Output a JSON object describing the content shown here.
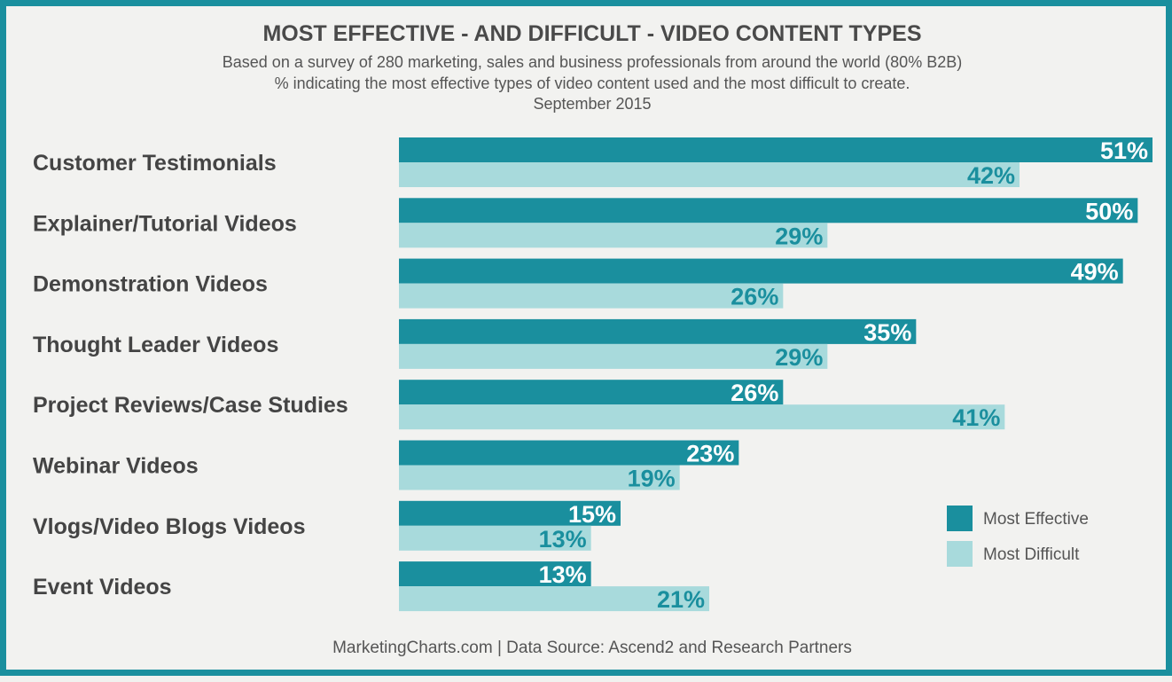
{
  "header": {
    "title": "MOST EFFECTIVE - AND DIFFICULT - VIDEO CONTENT TYPES",
    "subtitle_1": "Based on a survey of 280 marketing, sales and business professionals from around the world (80% B2B)",
    "subtitle_2": "% indicating the most effective types of video content used and the most difficult to create.",
    "subtitle_3": "September 2015"
  },
  "footer": {
    "source": "MarketingCharts.com | Data Source: Ascend2 and Research Partners"
  },
  "colors": {
    "frame": "#1a8f9e",
    "effective": "#1a8f9e",
    "difficult": "#a8dadc",
    "label_on_dark": "#ffffff",
    "label_on_light": "#1a8f9e"
  },
  "chart_data": {
    "type": "bar",
    "orientation": "horizontal",
    "title": "MOST EFFECTIVE - AND DIFFICULT - VIDEO CONTENT TYPES",
    "categories": [
      "Customer Testimonials",
      "Explainer/Tutorial Videos",
      "Demonstration Videos",
      "Thought Leader Videos",
      "Project Reviews/Case Studies",
      "Webinar Videos",
      "Vlogs/Video Blogs Videos",
      "Event Videos"
    ],
    "series": [
      {
        "name": "Most Effective",
        "values": [
          51,
          50,
          49,
          35,
          26,
          23,
          15,
          13
        ]
      },
      {
        "name": "Most Difficult",
        "values": [
          42,
          29,
          26,
          29,
          41,
          19,
          13,
          21
        ]
      }
    ],
    "value_suffix": "%",
    "xlim": [
      0,
      51
    ],
    "legend": {
      "position": "bottom-right",
      "entries": [
        "Most Effective",
        "Most Difficult"
      ]
    }
  }
}
